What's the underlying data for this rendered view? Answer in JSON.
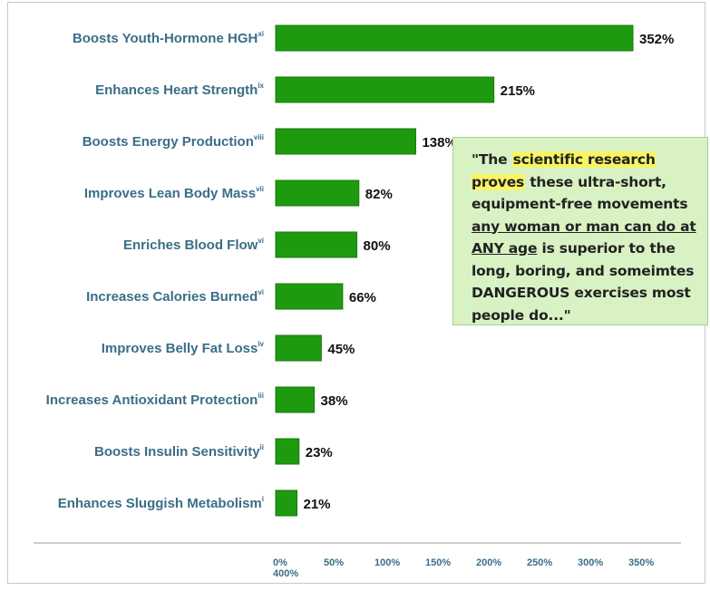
{
  "chart_data": {
    "type": "bar",
    "orientation": "horizontal",
    "categories": [
      "Boosts Youth-Hormone HGH",
      "Enhances Heart Strength",
      "Boosts Energy Production",
      "Improves Lean Body Mass",
      "Enriches Blood Flow",
      "Increases Calories Burned",
      "Improves Belly Fat Loss",
      "Increases Antioxidant Protection",
      "Boosts Insulin Sensitivity",
      "Enhances Sluggish Metabolism"
    ],
    "superscripts": [
      "xi",
      "ix",
      "viii",
      "vii",
      "vi",
      "vi",
      "iv",
      "iii",
      "ii",
      "i"
    ],
    "values": [
      352,
      215,
      138,
      82,
      80,
      66,
      45,
      38,
      23,
      21
    ],
    "value_labels": [
      "352%",
      "215%",
      "138%",
      "82%",
      "80%",
      "66%",
      "45%",
      "38%",
      "23%",
      "21%"
    ],
    "ticks": [
      0,
      50,
      100,
      150,
      200,
      250,
      300,
      350,
      400
    ],
    "tick_labels": [
      "0%",
      "50%",
      "100%",
      "150%",
      "200%",
      "250%",
      "300%",
      "350%",
      "400%"
    ],
    "xlim": [
      0,
      400
    ],
    "grid": false,
    "bar_color": "#1e9a0f",
    "bar_border_color": "#157a08",
    "label_color": "#3a6e87"
  },
  "callout": {
    "segments": [
      {
        "text": "\"The ",
        "style": "plain"
      },
      {
        "text": "scientific research proves",
        "style": "highlight"
      },
      {
        "text": " these ultra-short, equipment-free movements ",
        "style": "plain"
      },
      {
        "text": "any woman or man can do at ANY age",
        "style": "underline"
      },
      {
        "text": " is superior to the long, boring, and someimtes DANGEROUS exercises most people do...\"",
        "style": "plain"
      }
    ],
    "background_color": "#d8f2c4",
    "highlight_color": "#f8f564"
  }
}
